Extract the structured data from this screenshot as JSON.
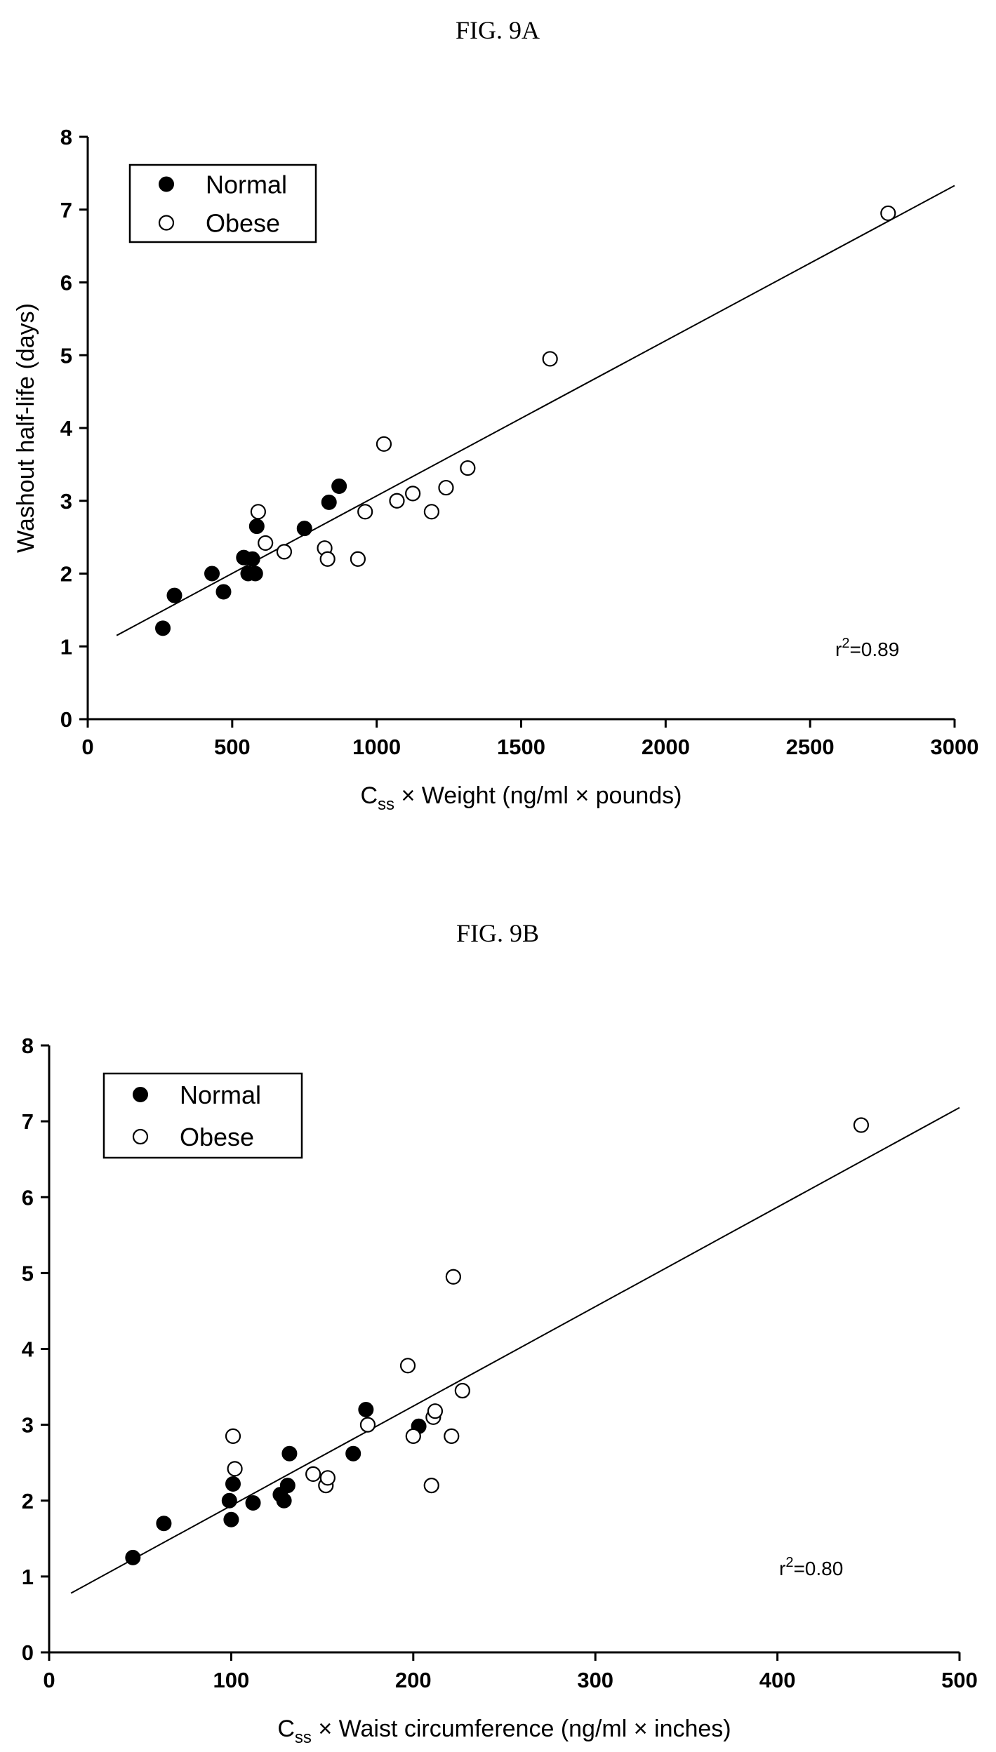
{
  "figures": [
    {
      "title": "FIG. 9A"
    },
    {
      "title": "FIG. 9B"
    }
  ],
  "chart_data": [
    {
      "type": "scatter",
      "title": "",
      "xlabel": "C",
      "xlabel_sub": "ss",
      "xlabel_rest": " × Weight (ng/ml × pounds)",
      "ylabel": "Washout half-life (days)",
      "xlim": [
        0,
        3000
      ],
      "ylim": [
        0,
        8
      ],
      "xticks": [
        0,
        500,
        1000,
        1500,
        2000,
        2500,
        3000
      ],
      "yticks": [
        0,
        1,
        2,
        3,
        4,
        5,
        6,
        7,
        8
      ],
      "legend": {
        "placement": "top-left",
        "entries": [
          "Normal",
          "Obese"
        ]
      },
      "annotation": {
        "base": "r",
        "sup": "2",
        "rest": "=0.89"
      },
      "fit_line": {
        "x": [
          100,
          3000
        ],
        "y": [
          1.15,
          7.33
        ]
      },
      "series": [
        {
          "name": "Normal",
          "marker": "filled-circle",
          "x": [
            260,
            300,
            430,
            470,
            540,
            555,
            570,
            580,
            585,
            750,
            835,
            870
          ],
          "y": [
            1.25,
            1.7,
            2.0,
            1.75,
            2.22,
            2.0,
            2.2,
            2.0,
            2.65,
            2.62,
            2.98,
            3.2
          ]
        },
        {
          "name": "Obese",
          "marker": "open-circle",
          "x": [
            590,
            615,
            680,
            820,
            830,
            935,
            960,
            1025,
            1070,
            1125,
            1190,
            1240,
            1315,
            1600,
            2770
          ],
          "y": [
            2.85,
            2.42,
            2.3,
            2.35,
            2.2,
            2.2,
            2.85,
            3.78,
            3.0,
            3.1,
            2.85,
            3.18,
            3.45,
            4.95,
            6.95
          ]
        }
      ]
    },
    {
      "type": "scatter",
      "title": "",
      "xlabel": "C",
      "xlabel_sub": "ss",
      "xlabel_rest": " × Waist circumference (ng/ml × inches)",
      "ylabel": "",
      "xlim": [
        0,
        500
      ],
      "ylim": [
        0,
        8
      ],
      "xticks": [
        0,
        100,
        200,
        300,
        400,
        500
      ],
      "yticks": [
        0,
        1,
        2,
        3,
        4,
        5,
        6,
        7,
        8
      ],
      "legend": {
        "placement": "top-left",
        "entries": [
          "Normal",
          "Obese"
        ]
      },
      "annotation": {
        "base": "r",
        "sup": "2",
        "rest": "=0.80"
      },
      "fit_line": {
        "x": [
          12,
          500
        ],
        "y": [
          0.78,
          7.18
        ]
      },
      "series": [
        {
          "name": "Normal",
          "marker": "filled-circle",
          "x": [
            46,
            63,
            99,
            100,
            101,
            112,
            127,
            129,
            131,
            132,
            167,
            174,
            203
          ],
          "y": [
            1.25,
            1.7,
            2.0,
            1.75,
            2.22,
            1.97,
            2.08,
            2.0,
            2.2,
            2.62,
            2.62,
            3.2,
            2.98
          ]
        },
        {
          "name": "Obese",
          "marker": "open-circle",
          "x": [
            101,
            102,
            145,
            152,
            153,
            175,
            197,
            200,
            210,
            211,
            212,
            221,
            222,
            227,
            446
          ],
          "y": [
            2.85,
            2.42,
            2.35,
            2.2,
            2.3,
            3.0,
            3.78,
            2.85,
            2.2,
            3.1,
            3.18,
            2.85,
            4.95,
            3.45,
            6.95
          ]
        }
      ]
    }
  ]
}
